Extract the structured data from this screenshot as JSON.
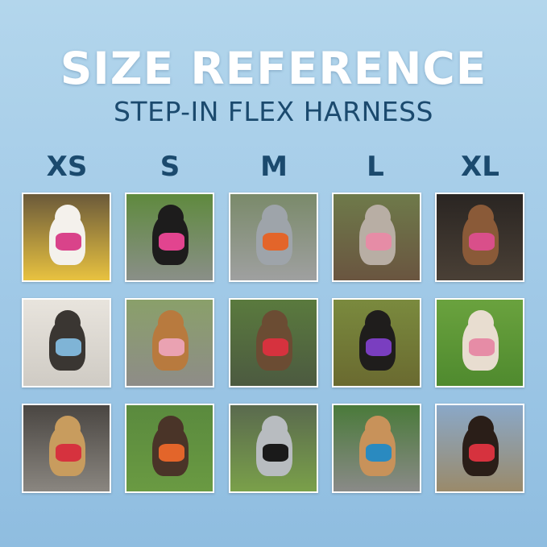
{
  "header": {
    "title": "SIZE REFERENCE",
    "subtitle": "STEP-IN FLEX HARNESS"
  },
  "sizes": [
    "XS",
    "S",
    "M",
    "L",
    "XL"
  ],
  "photos": [
    {
      "size": "XS",
      "bg": [
        "#6b5a3a",
        "#e8c240"
      ],
      "dog": "#f4f1ec",
      "harness": "#d9438a"
    },
    {
      "size": "S",
      "bg": [
        "#5f8a3e",
        "#8a8f88"
      ],
      "dog": "#1d1c1c",
      "harness": "#e2448f"
    },
    {
      "size": "M",
      "bg": [
        "#7a8a6a",
        "#9fa0a0"
      ],
      "dog": "#9ea4aa",
      "harness": "#e3652a"
    },
    {
      "size": "L",
      "bg": [
        "#6e7a4a",
        "#6a5540"
      ],
      "dog": "#b8aea4",
      "harness": "#e68ca6"
    },
    {
      "size": "XL",
      "bg": [
        "#2a2522",
        "#4a4036"
      ],
      "dog": "#8a5a38",
      "harness": "#d94f8a"
    },
    {
      "size": "XS",
      "bg": [
        "#e8e4dd",
        "#cfcbc4"
      ],
      "dog": "#3a3632",
      "harness": "#7fb4d6"
    },
    {
      "size": "S",
      "bg": [
        "#8aa06a",
        "#8e8c88"
      ],
      "dog": "#b87a3e",
      "harness": "#eaa2b2"
    },
    {
      "size": "M",
      "bg": [
        "#5a7a3e",
        "#4c5a40"
      ],
      "dog": "#6b4c33",
      "harness": "#d6323e"
    },
    {
      "size": "L",
      "bg": [
        "#7a8a3e",
        "#6a6a30"
      ],
      "dog": "#1f1d1c",
      "harness": "#7a3ec0"
    },
    {
      "size": "XL",
      "bg": [
        "#6aa23e",
        "#4f8a2e"
      ],
      "dog": "#e8ddd0",
      "harness": "#e68ca6"
    },
    {
      "size": "XS",
      "bg": [
        "#4a4642",
        "#8a8680"
      ],
      "dog": "#c89c5e",
      "harness": "#d6323e"
    },
    {
      "size": "S",
      "bg": [
        "#5a8a3e",
        "#6a9a42"
      ],
      "dog": "#4a3428",
      "harness": "#e3652a"
    },
    {
      "size": "M",
      "bg": [
        "#5a6a4e",
        "#7aa04a"
      ],
      "dog": "#b8bcc0",
      "harness": "#1a1a1a"
    },
    {
      "size": "L",
      "bg": [
        "#4a7a3a",
        "#8a8a88"
      ],
      "dog": "#c8925a",
      "harness": "#2a8ac0"
    },
    {
      "size": "XL",
      "bg": [
        "#8aa8c8",
        "#9a8a6a"
      ],
      "dog": "#2a1e18",
      "harness": "#d6323e"
    }
  ]
}
